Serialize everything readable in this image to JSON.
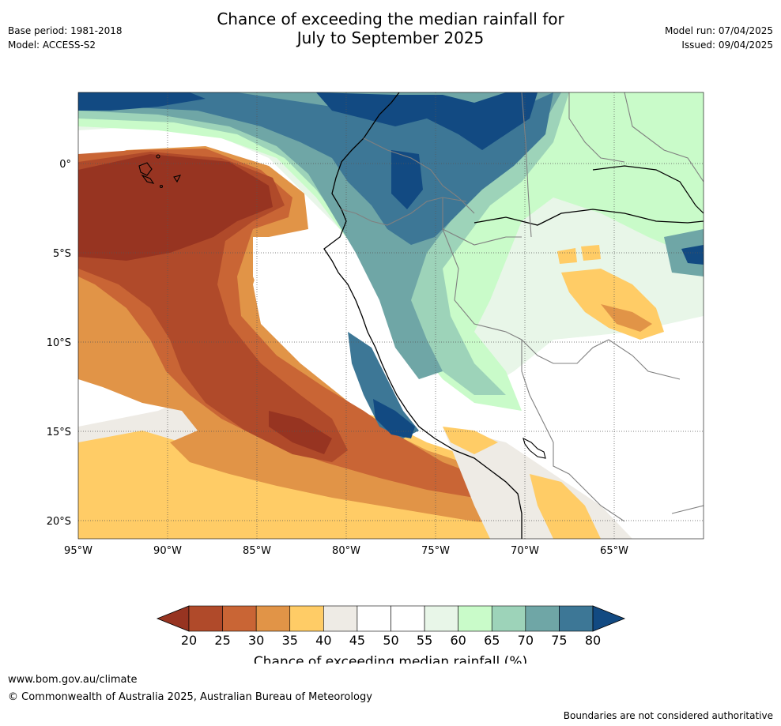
{
  "header": {
    "base_period": "Base period: 1981-2018",
    "model": "Model: ACCESS-S2",
    "title_line1": "Chance of exceeding the median rainfall for",
    "title_line2": "July to September 2025",
    "model_run": "Model run: 07/04/2025",
    "issued": "Issued: 09/04/2025"
  },
  "map": {
    "lat_labels": [
      "0°",
      "5°S",
      "10°S",
      "15°S",
      "20°S"
    ],
    "lon_labels": [
      "95°W",
      "90°W",
      "85°W",
      "80°W",
      "75°W",
      "70°W",
      "65°W"
    ],
    "lat_values": [
      0,
      -5,
      -10,
      -15,
      -20
    ],
    "lon_values": [
      -95,
      -90,
      -85,
      -80,
      -75,
      -70,
      -65
    ],
    "lat_range": [
      -21.2,
      4
    ],
    "lon_range": [
      -95,
      -60
    ],
    "gridlines": true
  },
  "colorbar": {
    "ticks": [
      "20",
      "25",
      "30",
      "35",
      "40",
      "45",
      "50",
      "55",
      "60",
      "65",
      "70",
      "75",
      "80"
    ],
    "colors": [
      "#973421",
      "#b04a2a",
      "#c96535",
      "#e19447",
      "#ffcc66",
      "#eeebe5",
      "#ffffff",
      "#ffffff",
      "#e8f6e8",
      "#c9fbc9",
      "#9dd3b9",
      "#6fa6a6",
      "#3d7796",
      "#124a82"
    ],
    "label": "Chance of exceeding median rainfall (%)"
  },
  "footer": {
    "website": "www.bom.gov.au/climate",
    "copyright": "© Commonwealth of Australia 2025, Australian Bureau of Meteorology",
    "disclaimer": "Boundaries are not considered authoritative"
  }
}
